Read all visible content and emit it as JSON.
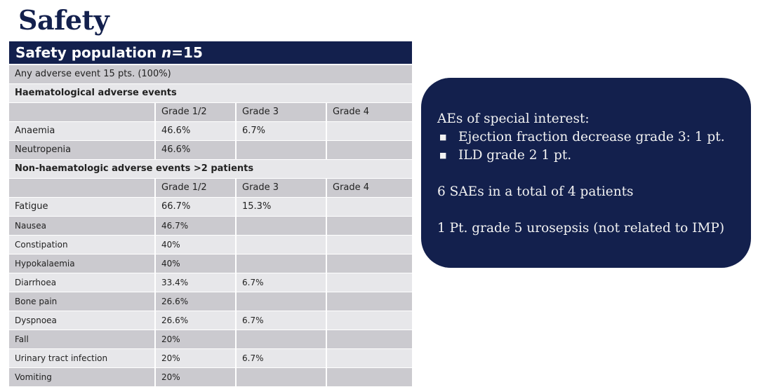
{
  "title": "Safety",
  "table": {
    "header_prefix": "Safety population ",
    "header_n": "n",
    "header_suffix": "=15",
    "any_ae": "Any adverse event 15 pts. (100%)",
    "haem_heading": "Haematological adverse events",
    "nonhaem_heading": "Non-haematologic adverse events >2 patients",
    "columns": [
      "",
      "Grade 1/2",
      "Grade 3",
      "Grade 4"
    ],
    "haem_rows": [
      [
        "Anaemia",
        "46.6%",
        "6.7%",
        ""
      ],
      [
        "Neutropenia",
        "46.6%",
        "",
        ""
      ]
    ],
    "nonhaem_rows": [
      [
        "Fatigue",
        "66.7%",
        "15.3%",
        ""
      ],
      [
        "Nausea",
        "46.7%",
        "",
        ""
      ],
      [
        "Constipation",
        "40%",
        "",
        ""
      ],
      [
        "Hypokalaemia",
        "40%",
        "",
        ""
      ],
      [
        "Diarrhoea",
        "33.4%",
        "6.7%",
        ""
      ],
      [
        "Bone pain",
        "26.6%",
        "",
        ""
      ],
      [
        "Dyspnoea",
        "26.6%",
        "6.7%",
        ""
      ],
      [
        "Fall",
        "20%",
        "",
        ""
      ],
      [
        "Urinary tract infection",
        "20%",
        "6.7%",
        ""
      ],
      [
        "Vomiting",
        "20%",
        "",
        ""
      ]
    ]
  },
  "box": {
    "heading": "AEs of special interest:",
    "bullets": [
      "Ejection fraction decrease grade 3: 1 pt.",
      "ILD grade 2 1 pt."
    ],
    "saes": "6 SAEs in a total of 4 patients",
    "death": "1 Pt. grade 5 urosepsis (not related to IMP)"
  },
  "colors": {
    "navy": "#13204d",
    "row_dark": "#cbcacf",
    "row_light": "#e7e7ea"
  }
}
